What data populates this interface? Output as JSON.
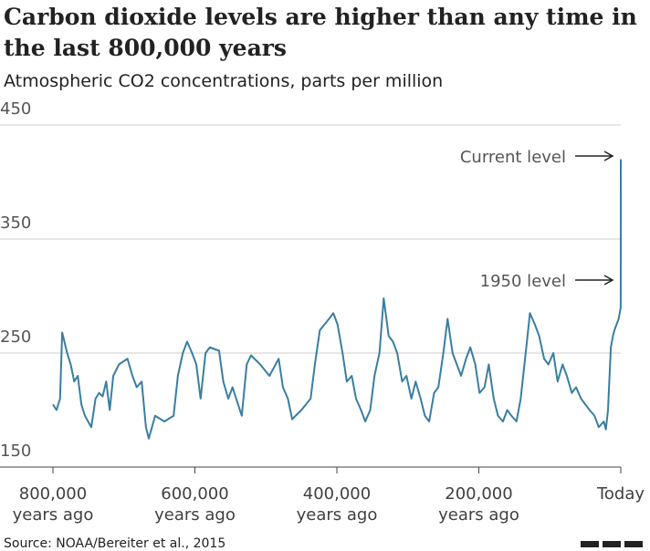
{
  "chart_data": {
    "type": "line",
    "title": "Carbon dioxide levels are higher than any time in the last 800,000 years",
    "subtitle": "Atmospheric CO2 concentrations, parts per million",
    "source": "Source: NOAA/Bereiter et al., 2015",
    "annotations": [
      "Current level",
      "1950 level"
    ],
    "x": [
      800000,
      795000,
      790000,
      787000,
      780000,
      775000,
      770000,
      765000,
      760000,
      755000,
      746000,
      740000,
      735000,
      730000,
      725000,
      720000,
      715000,
      707000,
      695000,
      688000,
      682000,
      675000,
      669000,
      665000,
      656000,
      643000,
      630000,
      624000,
      617000,
      611000,
      604000,
      598000,
      592000,
      585000,
      579000,
      566000,
      560000,
      553000,
      547000,
      534000,
      527000,
      521000,
      508000,
      495000,
      482000,
      476000,
      469000,
      463000,
      450000,
      437000,
      431000,
      424000,
      411000,
      405000,
      399000,
      392000,
      386000,
      379000,
      373000,
      366000,
      360000,
      353000,
      347000,
      340000,
      334000,
      327000,
      321000,
      315000,
      308000,
      302000,
      295000,
      289000,
      282000,
      276000,
      270000,
      263000,
      257000,
      250000,
      244000,
      237000,
      231000,
      225000,
      218000,
      212000,
      205000,
      199000,
      192000,
      186000,
      179000,
      173000,
      166000,
      160000,
      154000,
      147000,
      141000,
      134000,
      128000,
      121000,
      115000,
      108000,
      102000,
      95000,
      89000,
      82000,
      76000,
      69000,
      63000,
      56000,
      50000,
      44000,
      37000,
      31000,
      24000,
      21000,
      18000,
      14000,
      11000,
      9000,
      6000,
      3000,
      1500,
      100,
      70,
      0
    ],
    "series": [
      {
        "name": "CO2",
        "color": "#3a7ea1",
        "values": [
          205,
          200,
          210,
          268,
          250,
          240,
          225,
          230,
          205,
          195,
          185,
          210,
          215,
          212,
          225,
          200,
          230,
          240,
          245,
          230,
          220,
          225,
          185,
          175,
          195,
          190,
          195,
          230,
          250,
          260,
          250,
          240,
          210,
          250,
          255,
          252,
          225,
          210,
          220,
          195,
          240,
          248,
          240,
          230,
          245,
          220,
          210,
          192,
          200,
          210,
          240,
          270,
          280,
          285,
          275,
          250,
          225,
          230,
          210,
          200,
          190,
          200,
          230,
          250,
          298,
          265,
          260,
          250,
          225,
          230,
          210,
          225,
          210,
          195,
          190,
          215,
          220,
          250,
          280,
          250,
          240,
          230,
          245,
          255,
          240,
          215,
          220,
          240,
          210,
          195,
          190,
          200,
          195,
          190,
          210,
          250,
          285,
          275,
          265,
          245,
          240,
          250,
          225,
          240,
          230,
          215,
          220,
          210,
          205,
          200,
          195,
          185,
          190,
          183,
          200,
          255,
          265,
          270,
          275,
          280,
          285,
          290,
          311,
          420
        ]
      }
    ],
    "xlim": [
      800000,
      0
    ],
    "xticks": [
      {
        "value": 800000,
        "label": "800,000 years ago"
      },
      {
        "value": 600000,
        "label": "600,000 years ago"
      },
      {
        "value": 400000,
        "label": "400,000 years ago"
      },
      {
        "value": 200000,
        "label": "200,000 years ago"
      },
      {
        "value": 0,
        "label": "Today"
      }
    ],
    "ylim": [
      150,
      450
    ],
    "yticks": [
      150,
      250,
      350,
      450
    ],
    "grid": true
  }
}
